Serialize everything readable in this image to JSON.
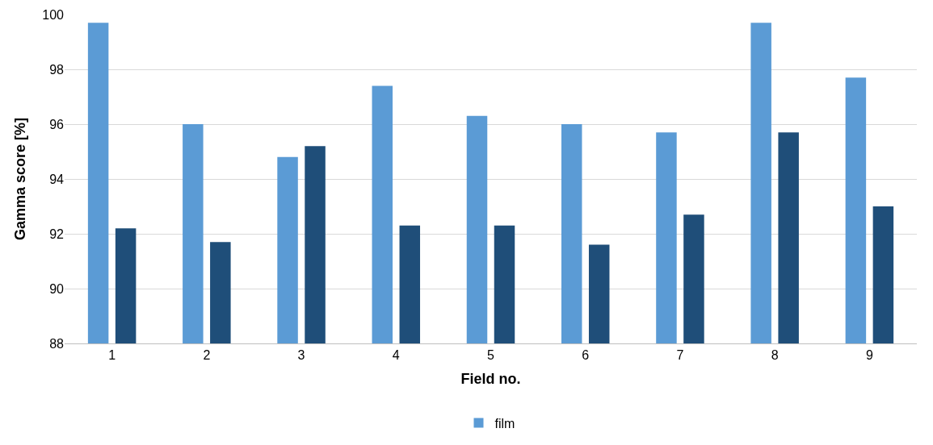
{
  "chart_data": {
    "type": "bar",
    "xlabel": "Field no.",
    "ylabel": "Gamma score [%]",
    "categories": [
      "1",
      "2",
      "3",
      "4",
      "5",
      "6",
      "7",
      "8",
      "9"
    ],
    "series": [
      {
        "name": "film",
        "color": "#5b9bd5",
        "values": [
          99.7,
          96.0,
          94.8,
          97.4,
          96.3,
          96.0,
          95.7,
          99.7,
          97.7
        ]
      },
      {
        "color": "#1f4e79",
        "values": [
          92.2,
          91.7,
          95.2,
          92.3,
          92.3,
          91.6,
          92.7,
          95.7,
          93.0
        ]
      }
    ],
    "ylim": [
      88,
      100
    ],
    "yticks": [
      88,
      90,
      92,
      94,
      96,
      98,
      100
    ],
    "grid": "y",
    "legend": "bottom"
  }
}
